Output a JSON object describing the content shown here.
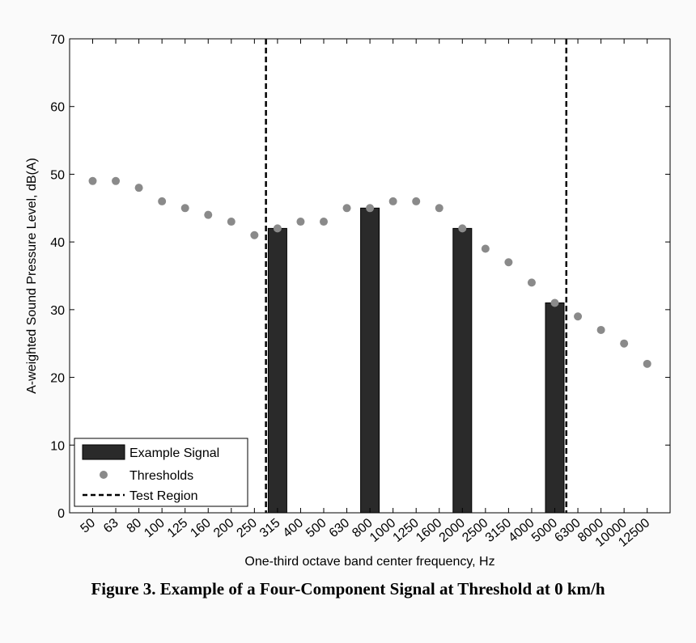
{
  "chart_data": {
    "type": "bar",
    "xlabel": "One-third octave band center frequency, Hz",
    "ylabel": "A-weighted Sound Pressure Level, dB(A)",
    "ylim": [
      0,
      70
    ],
    "yticks": [
      0,
      10,
      20,
      30,
      40,
      50,
      60,
      70
    ],
    "grid": false,
    "legend_placement": "bottom-left",
    "categories": [
      "50",
      "63",
      "80",
      "100",
      "125",
      "160",
      "200",
      "250",
      "315",
      "400",
      "500",
      "630",
      "800",
      "1000",
      "1250",
      "1600",
      "2000",
      "2500",
      "3150",
      "4000",
      "5000",
      "6300",
      "8000",
      "10000",
      "12500"
    ],
    "series": [
      {
        "name": "Example Signal",
        "type": "bar",
        "color": "#2a2a2a",
        "values": [
          null,
          null,
          null,
          null,
          null,
          null,
          null,
          null,
          42,
          null,
          null,
          null,
          45,
          null,
          null,
          null,
          42,
          null,
          null,
          null,
          31,
          null,
          null,
          null,
          null
        ]
      },
      {
        "name": "Thresholds",
        "type": "scatter",
        "color": "#8a8a8a",
        "values": [
          49,
          49,
          48,
          46,
          45,
          44,
          43,
          41,
          42,
          43,
          43,
          45,
          45,
          46,
          46,
          45,
          42,
          39,
          37,
          34,
          31,
          29,
          27,
          25,
          22
        ]
      },
      {
        "name": "Test Region",
        "type": "vline",
        "style": "dashed",
        "color": "#000000",
        "x_between": [
          [
            "250",
            "315"
          ],
          [
            "5000",
            "6300"
          ]
        ]
      }
    ]
  },
  "caption": "Figure 3.  Example of a Four-Component Signal at Threshold at 0 km/h"
}
